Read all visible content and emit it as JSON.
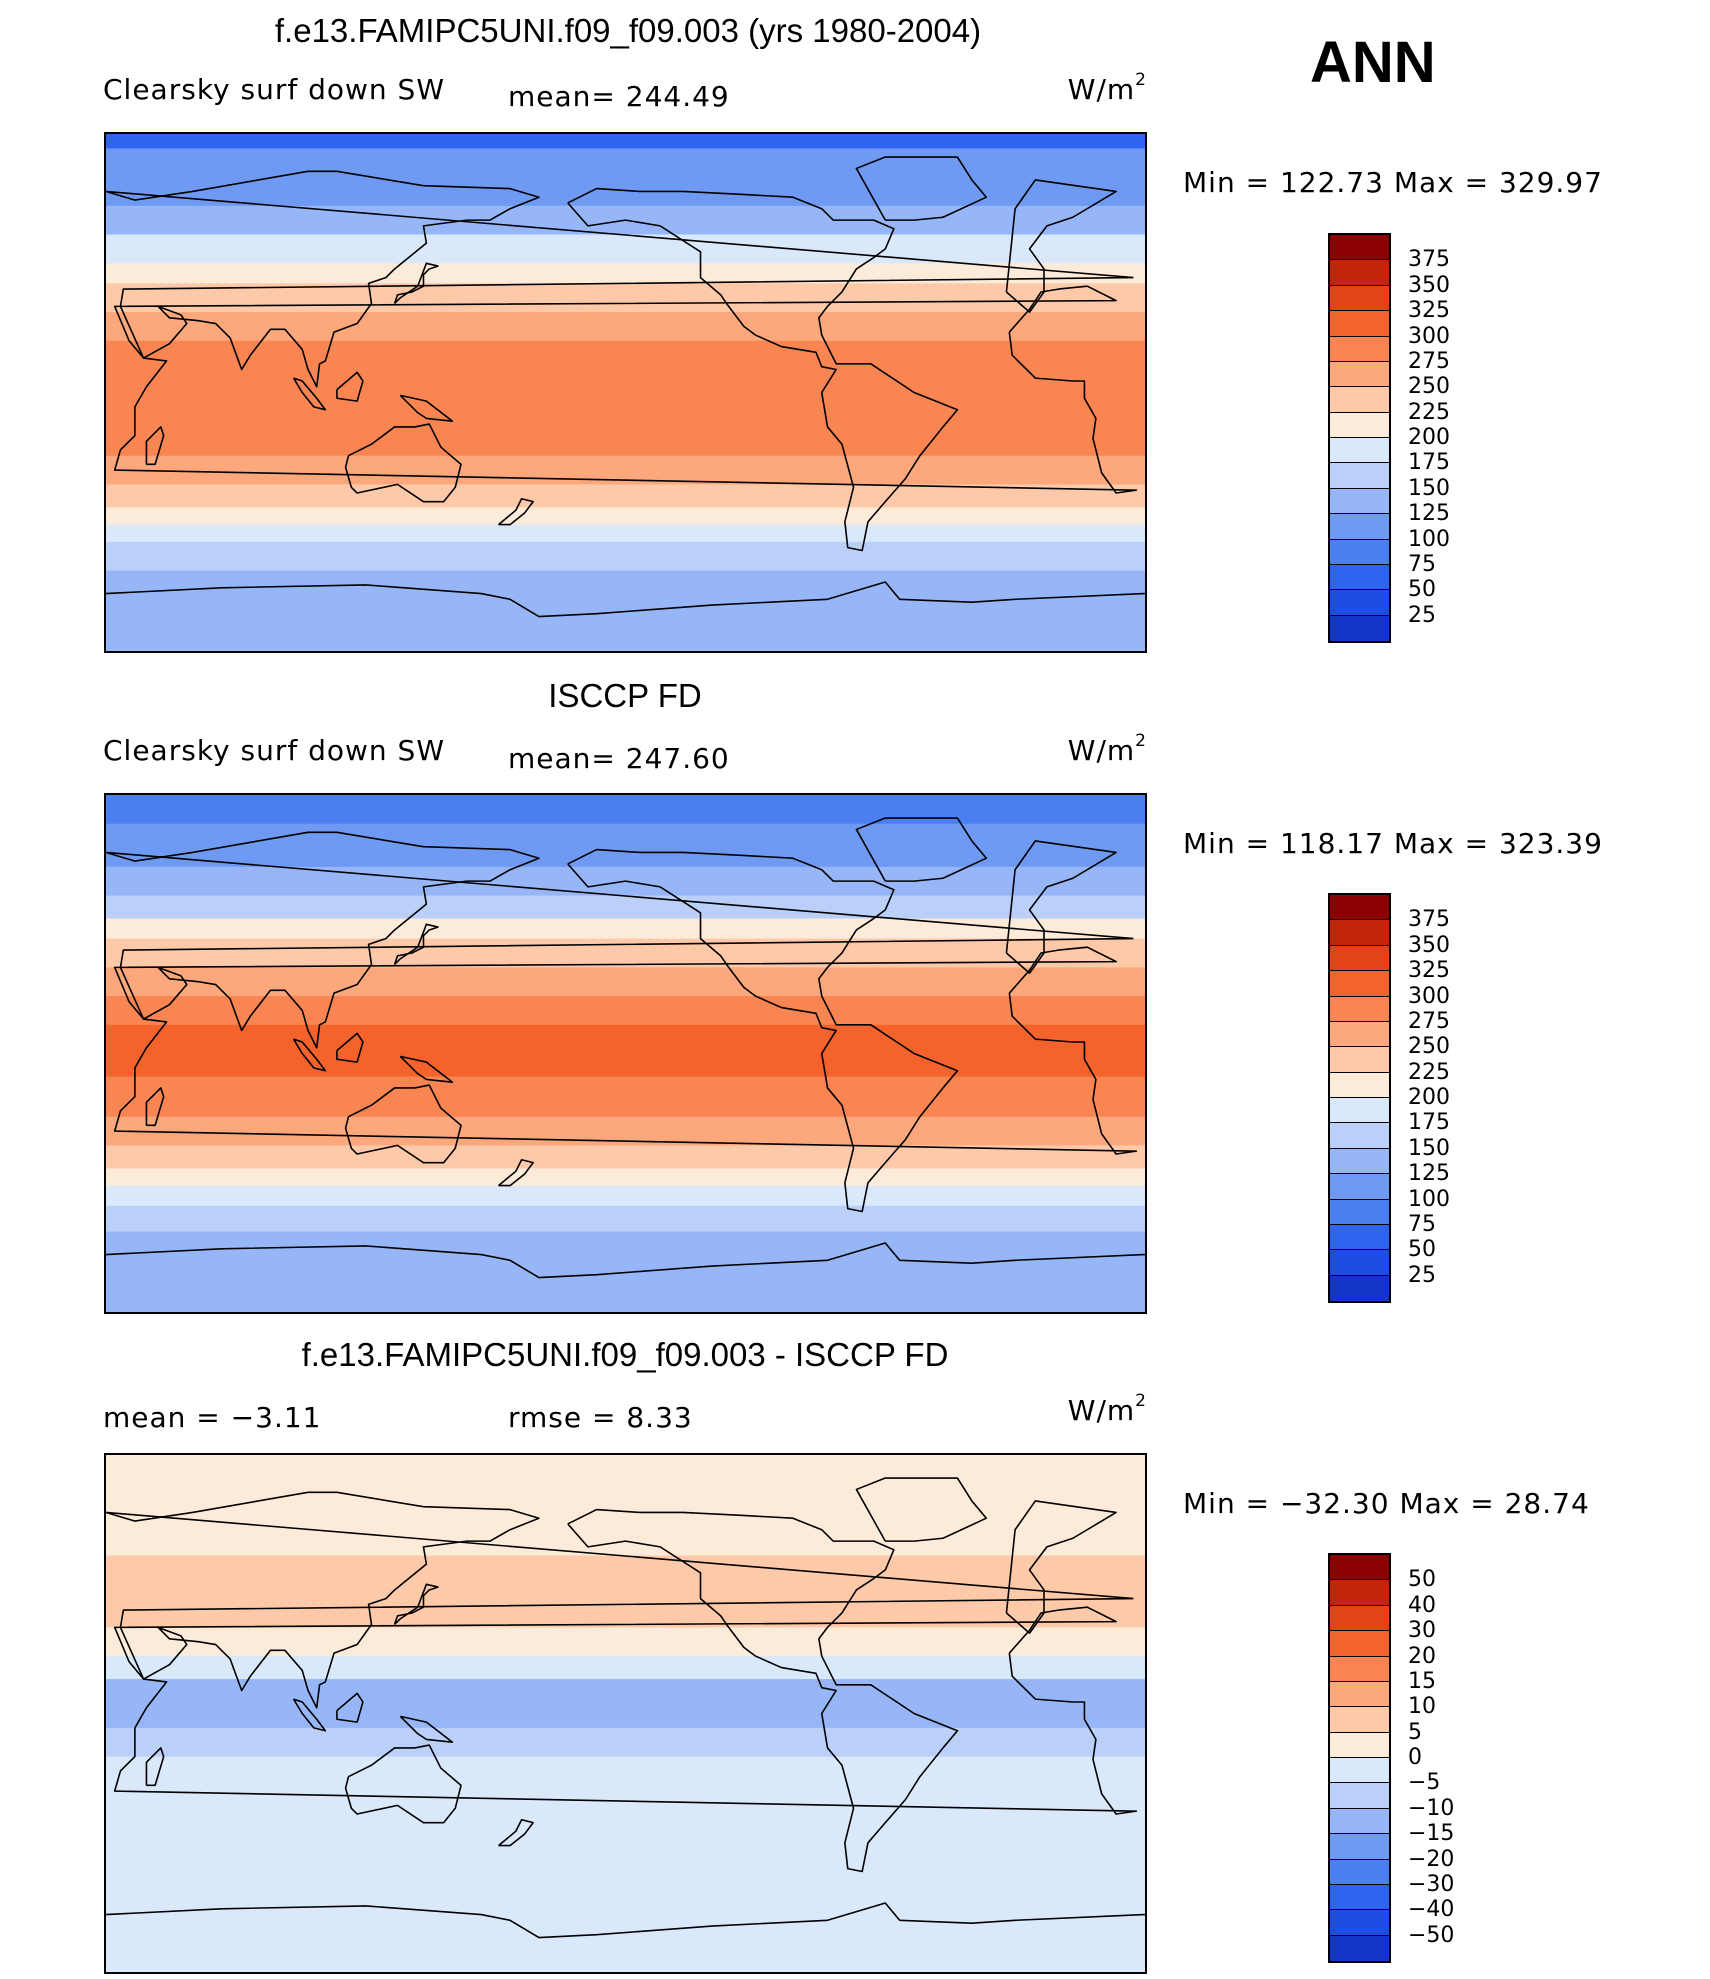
{
  "season": "ANN",
  "units_text": "W/m",
  "units_sup": "2",
  "palettes": {
    "abs": [
      "#000080",
      "#0a1fa6",
      "#1436c8",
      "#1e4de6",
      "#2e64ee",
      "#4a7ef1",
      "#6f9af4",
      "#96b6f7",
      "#bad0f9",
      "#d9e8fb",
      "#fdebd9",
      "#fdc9a9",
      "#fca77c",
      "#f98552",
      "#f4632c",
      "#e24417",
      "#c1250a",
      "#8b0000"
    ],
    "diff": [
      "#000080",
      "#0a1fa6",
      "#1436c8",
      "#1e4de6",
      "#2e64ee",
      "#4a7ef1",
      "#6f9af4",
      "#96b6f7",
      "#bad0f9",
      "#d9e8fb",
      "#fdebd9",
      "#fdc9a9",
      "#fca77c",
      "#f98552",
      "#f4632c",
      "#e24417",
      "#c1250a",
      "#8b0000"
    ]
  },
  "panels": [
    {
      "id": "model",
      "title": "f.e13.FAMIPC5UNI.f09_f09.003 (yrs 1980-2004)",
      "left_label": "Clearsky surf down SW",
      "stat_text": "mean= 244.49",
      "minmax_text": "Min = 122.73 Max = 329.97",
      "colorbar_labels": [
        "375",
        "350",
        "325",
        "300",
        "275",
        "250",
        "225",
        "200",
        "175",
        "150",
        "125",
        "100",
        "75",
        "50",
        "25"
      ],
      "palette": "abs",
      "bands": [
        {
          "lat_top": 90,
          "lat_bot": 85,
          "level": 4
        },
        {
          "lat_top": 85,
          "lat_bot": 65,
          "level": 6
        },
        {
          "lat_top": 65,
          "lat_bot": 55,
          "level": 7
        },
        {
          "lat_top": 55,
          "lat_bot": 45,
          "level": 9
        },
        {
          "lat_top": 45,
          "lat_bot": 38,
          "level": 10
        },
        {
          "lat_top": 38,
          "lat_bot": 28,
          "level": 11
        },
        {
          "lat_top": 28,
          "lat_bot": 18,
          "level": 12
        },
        {
          "lat_top": 18,
          "lat_bot": -22,
          "level": 13
        },
        {
          "lat_top": -22,
          "lat_bot": -32,
          "level": 12
        },
        {
          "lat_top": -32,
          "lat_bot": -40,
          "level": 11
        },
        {
          "lat_top": -40,
          "lat_bot": -46,
          "level": 10
        },
        {
          "lat_top": -46,
          "lat_bot": -52,
          "level": 9
        },
        {
          "lat_top": -52,
          "lat_bot": -62,
          "level": 8
        },
        {
          "lat_top": -62,
          "lat_bot": -90,
          "level": 7
        }
      ]
    },
    {
      "id": "obs",
      "title": "ISCCP FD",
      "left_label": "Clearsky surf down SW",
      "stat_text": "mean= 247.60",
      "minmax_text": "Min = 118.17 Max = 323.39",
      "colorbar_labels": [
        "375",
        "350",
        "325",
        "300",
        "275",
        "250",
        "225",
        "200",
        "175",
        "150",
        "125",
        "100",
        "75",
        "50",
        "25"
      ],
      "palette": "abs",
      "bands": [
        {
          "lat_top": 90,
          "lat_bot": 80,
          "level": 5
        },
        {
          "lat_top": 80,
          "lat_bot": 65,
          "level": 6
        },
        {
          "lat_top": 65,
          "lat_bot": 55,
          "level": 7
        },
        {
          "lat_top": 55,
          "lat_bot": 47,
          "level": 8
        },
        {
          "lat_top": 47,
          "lat_bot": 40,
          "level": 10
        },
        {
          "lat_top": 40,
          "lat_bot": 30,
          "level": 11
        },
        {
          "lat_top": 30,
          "lat_bot": 20,
          "level": 12
        },
        {
          "lat_top": 20,
          "lat_bot": 10,
          "level": 13
        },
        {
          "lat_top": 10,
          "lat_bot": -8,
          "level": 14
        },
        {
          "lat_top": -8,
          "lat_bot": -22,
          "level": 13
        },
        {
          "lat_top": -22,
          "lat_bot": -32,
          "level": 12
        },
        {
          "lat_top": -32,
          "lat_bot": -40,
          "level": 11
        },
        {
          "lat_top": -40,
          "lat_bot": -46,
          "level": 10
        },
        {
          "lat_top": -46,
          "lat_bot": -53,
          "level": 9
        },
        {
          "lat_top": -53,
          "lat_bot": -62,
          "level": 8
        },
        {
          "lat_top": -62,
          "lat_bot": -90,
          "level": 7
        }
      ]
    },
    {
      "id": "diff",
      "title": "f.e13.FAMIPC5UNI.f09_f09.003 - ISCCP FD",
      "left_label": "mean =   −3.11",
      "stat_text": "rmse =    8.33",
      "minmax_text": "Min = −32.30 Max =   28.74",
      "colorbar_labels": [
        "50",
        "40",
        "30",
        "20",
        "15",
        "10",
        "5",
        "0",
        "−5",
        "−10",
        "−15",
        "−20",
        "−30",
        "−40",
        "−50"
      ],
      "palette": "diff",
      "bands": [
        {
          "lat_top": 90,
          "lat_bot": 55,
          "level": 10
        },
        {
          "lat_top": 55,
          "lat_bot": 30,
          "level": 11
        },
        {
          "lat_top": 30,
          "lat_bot": 20,
          "level": 10
        },
        {
          "lat_top": 20,
          "lat_bot": 12,
          "level": 9
        },
        {
          "lat_top": 12,
          "lat_bot": -5,
          "level": 7
        },
        {
          "lat_top": -5,
          "lat_bot": -15,
          "level": 8
        },
        {
          "lat_top": -15,
          "lat_bot": -90,
          "level": 9
        }
      ]
    }
  ]
}
